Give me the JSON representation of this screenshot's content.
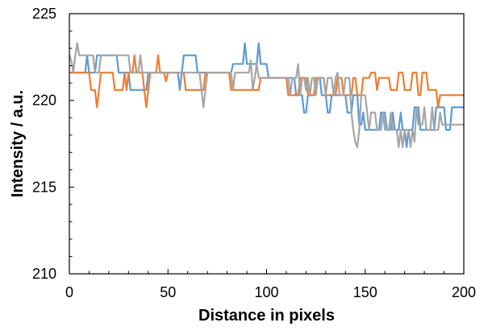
{
  "chart_data": {
    "type": "line",
    "title": "",
    "xlabel": "Distance in pixels",
    "ylabel": "Intensity / a.u.",
    "xlim": [
      0,
      200
    ],
    "ylim": [
      210,
      225
    ],
    "xticks": [
      0,
      50,
      100,
      150,
      200
    ],
    "yticks": [
      210,
      215,
      220,
      225
    ],
    "grid": false,
    "legend": "none",
    "series": [
      {
        "color": "#5B9BD5",
        "points": [
          [
            0,
            221.6
          ],
          [
            2,
            221.6
          ],
          [
            8,
            221.6
          ],
          [
            9,
            222.6
          ],
          [
            10,
            221.6
          ],
          [
            13,
            221.6
          ],
          [
            14,
            222.6
          ],
          [
            24,
            222.6
          ],
          [
            25,
            221.6
          ],
          [
            30,
            221.6
          ],
          [
            31,
            220.6
          ],
          [
            39,
            220.6
          ],
          [
            40,
            221.6
          ],
          [
            55,
            221.6
          ],
          [
            56,
            220.6
          ],
          [
            57,
            221.6
          ],
          [
            58,
            222.6
          ],
          [
            64,
            222.6
          ],
          [
            65,
            221.6
          ],
          [
            82,
            221.6
          ],
          [
            83,
            222.1
          ],
          [
            86,
            222.1
          ],
          [
            88,
            222.1
          ],
          [
            89,
            223.3
          ],
          [
            90,
            222.1
          ],
          [
            92,
            222.1
          ],
          [
            95,
            222.1
          ],
          [
            96,
            223.3
          ],
          [
            97,
            222.1
          ],
          [
            100,
            222.1
          ],
          [
            101,
            221.3
          ],
          [
            114,
            221.3
          ],
          [
            115,
            220.3
          ],
          [
            118,
            220.3
          ],
          [
            119,
            219.3
          ],
          [
            120,
            219.3
          ],
          [
            121,
            220.3
          ],
          [
            124,
            220.3
          ],
          [
            125,
            221.3
          ],
          [
            127,
            221.3
          ],
          [
            128,
            220.3
          ],
          [
            130,
            220.3
          ],
          [
            131,
            219.3
          ],
          [
            132,
            219.3
          ],
          [
            133,
            220.3
          ],
          [
            140,
            220.3
          ],
          [
            141,
            219.3
          ],
          [
            143,
            219.3
          ],
          [
            144,
            220.3
          ],
          [
            146,
            220.3
          ],
          [
            147,
            218.6
          ],
          [
            148,
            218.6
          ],
          [
            149,
            219.3
          ],
          [
            150,
            218.3
          ],
          [
            157,
            218.3
          ],
          [
            158,
            219.3
          ],
          [
            160,
            219.3
          ],
          [
            161,
            218.3
          ],
          [
            163,
            218.3
          ],
          [
            164,
            219.3
          ],
          [
            165,
            218.3
          ],
          [
            167,
            218.3
          ],
          [
            168,
            219.3
          ],
          [
            169,
            218.3
          ],
          [
            170,
            218.3
          ],
          [
            171,
            217.3
          ],
          [
            172,
            218.3
          ],
          [
            174,
            218.3
          ],
          [
            175,
            219.6
          ],
          [
            177,
            219.6
          ],
          [
            178,
            218.3
          ],
          [
            185,
            218.3
          ],
          [
            186,
            219.6
          ],
          [
            190,
            219.6
          ],
          [
            191,
            218.3
          ],
          [
            193,
            218.3
          ],
          [
            194,
            219.6
          ],
          [
            200,
            219.6
          ]
        ]
      },
      {
        "color": "#ED7D31",
        "points": [
          [
            0,
            221.6
          ],
          [
            10,
            221.6
          ],
          [
            11,
            220.6
          ],
          [
            13,
            220.6
          ],
          [
            14,
            219.6
          ],
          [
            15,
            220.6
          ],
          [
            16,
            221.6
          ],
          [
            22,
            221.6
          ],
          [
            23,
            220.6
          ],
          [
            27,
            220.6
          ],
          [
            28,
            221.6
          ],
          [
            29,
            220.6
          ],
          [
            30,
            221.6
          ],
          [
            32,
            221.6
          ],
          [
            33,
            222.6
          ],
          [
            34,
            221.6
          ],
          [
            37,
            221.6
          ],
          [
            38,
            220.6
          ],
          [
            39,
            219.6
          ],
          [
            40,
            220.6
          ],
          [
            41,
            221.6
          ],
          [
            44,
            221.6
          ],
          [
            45,
            222.6
          ],
          [
            46,
            221.6
          ],
          [
            48,
            221.6
          ],
          [
            49,
            221.1
          ],
          [
            50,
            221.6
          ],
          [
            58,
            221.6
          ],
          [
            59,
            220.6
          ],
          [
            68,
            220.6
          ],
          [
            69,
            221.6
          ],
          [
            81,
            221.6
          ],
          [
            82,
            220.6
          ],
          [
            96,
            220.6
          ],
          [
            97,
            221.3
          ],
          [
            110,
            221.3
          ],
          [
            111,
            220.3
          ],
          [
            116,
            220.3
          ],
          [
            117,
            221.3
          ],
          [
            120,
            221.3
          ],
          [
            121,
            220.3
          ],
          [
            124,
            220.3
          ],
          [
            125,
            221.3
          ],
          [
            129,
            221.3
          ],
          [
            130,
            220.3
          ],
          [
            135,
            220.3
          ],
          [
            136,
            221.3
          ],
          [
            138,
            221.3
          ],
          [
            139,
            220.3
          ],
          [
            143,
            220.3
          ],
          [
            144,
            221.3
          ],
          [
            145,
            221.3
          ],
          [
            146,
            220.3
          ],
          [
            148,
            220.3
          ],
          [
            149,
            221.3
          ],
          [
            152,
            221.3
          ],
          [
            153,
            221.6
          ],
          [
            155,
            221.6
          ],
          [
            156,
            220.6
          ],
          [
            157,
            221.3
          ],
          [
            162,
            221.3
          ],
          [
            163,
            220.6
          ],
          [
            166,
            220.6
          ],
          [
            167,
            221.6
          ],
          [
            169,
            221.6
          ],
          [
            170,
            220.6
          ],
          [
            173,
            220.6
          ],
          [
            174,
            221.6
          ],
          [
            176,
            221.6
          ],
          [
            177,
            220.3
          ],
          [
            178,
            220.3
          ],
          [
            179,
            221.6
          ],
          [
            181,
            221.6
          ],
          [
            182,
            220.6
          ],
          [
            186,
            220.6
          ],
          [
            187,
            219.6
          ],
          [
            188,
            220.3
          ],
          [
            200,
            220.3
          ]
        ]
      },
      {
        "color": "#A5A5A5",
        "points": [
          [
            0,
            222.6
          ],
          [
            1,
            222.3
          ],
          [
            2,
            221.6
          ],
          [
            3,
            222.6
          ],
          [
            4,
            223.3
          ],
          [
            5,
            222.6
          ],
          [
            12,
            222.6
          ],
          [
            13,
            221.6
          ],
          [
            15,
            221.6
          ],
          [
            16,
            222.6
          ],
          [
            20,
            222.6
          ],
          [
            21,
            222.6
          ],
          [
            30,
            222.6
          ],
          [
            31,
            221.6
          ],
          [
            35,
            221.6
          ],
          [
            36,
            222.6
          ],
          [
            37,
            221.6
          ],
          [
            42,
            221.6
          ],
          [
            43,
            221.6
          ],
          [
            50,
            221.6
          ],
          [
            51,
            221.6
          ],
          [
            56,
            221.6
          ],
          [
            57,
            221.6
          ],
          [
            60,
            221.6
          ],
          [
            66,
            221.6
          ],
          [
            67,
            220.6
          ],
          [
            68,
            219.6
          ],
          [
            69,
            220.6
          ],
          [
            70,
            221.6
          ],
          [
            82,
            221.6
          ],
          [
            83,
            220.6
          ],
          [
            84,
            221.6
          ],
          [
            90,
            221.6
          ],
          [
            91,
            221.6
          ],
          [
            92,
            222.3
          ],
          [
            93,
            220.6
          ],
          [
            94,
            221.3
          ],
          [
            95,
            222.1
          ],
          [
            96,
            221.3
          ],
          [
            98,
            221.3
          ],
          [
            99,
            221.3
          ],
          [
            100,
            221.3
          ],
          [
            110,
            221.3
          ],
          [
            111,
            221.3
          ],
          [
            112,
            220.3
          ],
          [
            113,
            221.3
          ],
          [
            115,
            221.3
          ],
          [
            116,
            222.1
          ],
          [
            117,
            220.3
          ],
          [
            118,
            221.3
          ],
          [
            119,
            221.3
          ],
          [
            120,
            220.6
          ],
          [
            121,
            221.3
          ],
          [
            122,
            220.3
          ],
          [
            123,
            221.3
          ],
          [
            124,
            221.3
          ],
          [
            125,
            220.3
          ],
          [
            126,
            221.3
          ],
          [
            129,
            221.3
          ],
          [
            130,
            220.3
          ],
          [
            131,
            221.3
          ],
          [
            133,
            221.3
          ],
          [
            134,
            220.3
          ],
          [
            135,
            221.3
          ],
          [
            136,
            221.6
          ],
          [
            137,
            220.3
          ],
          [
            139,
            220.3
          ],
          [
            140,
            221.3
          ],
          [
            142,
            221.3
          ],
          [
            143,
            219.3
          ],
          [
            144,
            218.3
          ],
          [
            145,
            217.6
          ],
          [
            146,
            217.3
          ],
          [
            147,
            218.3
          ],
          [
            148,
            220.3
          ],
          [
            150,
            220.3
          ],
          [
            151,
            219.3
          ],
          [
            152,
            218.3
          ],
          [
            153,
            219.3
          ],
          [
            155,
            219.3
          ],
          [
            156,
            218.3
          ],
          [
            158,
            218.3
          ],
          [
            159,
            219.3
          ],
          [
            160,
            218.3
          ],
          [
            162,
            218.3
          ],
          [
            163,
            219.3
          ],
          [
            164,
            218.3
          ],
          [
            166,
            218.3
          ],
          [
            167,
            217.3
          ],
          [
            168,
            218.3
          ],
          [
            169,
            217.3
          ],
          [
            170,
            218.3
          ],
          [
            172,
            218.3
          ],
          [
            173,
            217.3
          ],
          [
            174,
            218.3
          ],
          [
            175,
            217.6
          ],
          [
            176,
            219.6
          ],
          [
            177,
            218.6
          ],
          [
            179,
            218.6
          ],
          [
            180,
            219.6
          ],
          [
            181,
            218.3
          ],
          [
            183,
            218.3
          ],
          [
            184,
            219.6
          ],
          [
            185,
            218.3
          ],
          [
            187,
            218.3
          ],
          [
            188,
            219.3
          ],
          [
            189,
            218.6
          ],
          [
            191,
            218.6
          ],
          [
            192,
            218.6
          ],
          [
            193,
            218.6
          ],
          [
            194,
            218.6
          ],
          [
            195,
            218.6
          ],
          [
            196,
            218.6
          ],
          [
            197,
            218.6
          ],
          [
            198,
            218.6
          ],
          [
            200,
            218.6
          ]
        ]
      }
    ]
  }
}
